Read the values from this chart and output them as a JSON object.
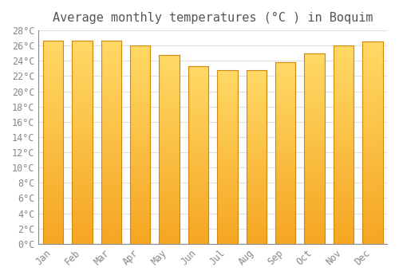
{
  "title": "Average monthly temperatures (°C ) in Boquim",
  "months": [
    "Jan",
    "Feb",
    "Mar",
    "Apr",
    "May",
    "Jun",
    "Jul",
    "Aug",
    "Sep",
    "Oct",
    "Nov",
    "Dec"
  ],
  "values": [
    26.7,
    26.7,
    26.7,
    26.0,
    24.8,
    23.3,
    22.8,
    22.8,
    23.8,
    25.0,
    26.0,
    26.5
  ],
  "ylim": [
    0,
    28
  ],
  "ytick_step": 2,
  "background_color": "#ffffff",
  "grid_color": "#e0e0e0",
  "title_fontsize": 11,
  "tick_fontsize": 8.5,
  "bar_color_bottom": "#F5A623",
  "bar_color_top": "#FFD966",
  "bar_border_color": "#D4880A",
  "bar_width": 0.7
}
